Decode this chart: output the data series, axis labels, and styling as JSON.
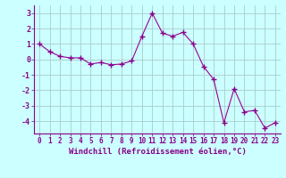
{
  "x": [
    0,
    1,
    2,
    3,
    4,
    5,
    6,
    7,
    8,
    9,
    10,
    11,
    12,
    13,
    14,
    15,
    16,
    17,
    18,
    19,
    20,
    21,
    22,
    23
  ],
  "y": [
    1.0,
    0.5,
    0.2,
    0.1,
    0.1,
    -0.3,
    -0.2,
    -0.35,
    -0.3,
    -0.1,
    1.5,
    3.0,
    1.7,
    1.5,
    1.75,
    1.0,
    -0.45,
    -1.3,
    -4.1,
    -1.9,
    -3.4,
    -3.3,
    -4.45,
    -4.1
  ],
  "line_color": "#990099",
  "marker": "+",
  "marker_size": 4,
  "marker_color": "#880088",
  "background_color": "#ccffff",
  "grid_color": "#aacccc",
  "xlabel": "Windchill (Refroidissement éolien,°C)",
  "xlabel_fontsize": 6.5,
  "yticks": [
    -4,
    -3,
    -2,
    -1,
    0,
    1,
    2,
    3
  ],
  "xticks": [
    0,
    1,
    2,
    3,
    4,
    5,
    6,
    7,
    8,
    9,
    10,
    11,
    12,
    13,
    14,
    15,
    16,
    17,
    18,
    19,
    20,
    21,
    22,
    23
  ],
  "ylim": [
    -4.8,
    3.5
  ],
  "xlim": [
    -0.5,
    23.5
  ],
  "tick_fontsize": 5.5
}
